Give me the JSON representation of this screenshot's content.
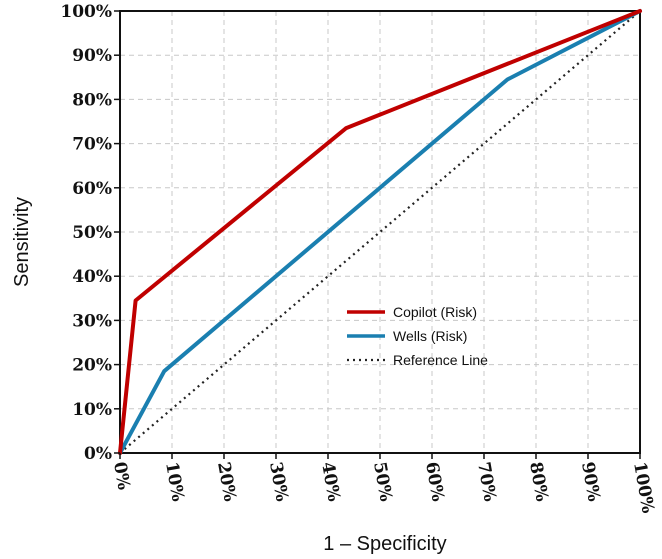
{
  "chart_data": {
    "type": "line",
    "title": "",
    "xlabel": "1 – Specificity",
    "ylabel": "Sensitivity",
    "xlim": [
      0,
      100
    ],
    "ylim": [
      0,
      100
    ],
    "x_ticks": [
      "0%",
      "10%",
      "20%",
      "30%",
      "40%",
      "50%",
      "60%",
      "70%",
      "80%",
      "90%",
      "100%"
    ],
    "y_ticks": [
      "0%",
      "10%",
      "20%",
      "30%",
      "40%",
      "50%",
      "60%",
      "70%",
      "80%",
      "90%",
      "100%"
    ],
    "grid": true,
    "legend_position": "center-right",
    "series": [
      {
        "name": "Copilot (Risk)",
        "color": "#C00000",
        "style": "solid",
        "points": [
          [
            0,
            0
          ],
          [
            3,
            34.5
          ],
          [
            43.5,
            73.5
          ],
          [
            100,
            100
          ]
        ]
      },
      {
        "name": "Wells (Risk)",
        "color": "#1A7FB0",
        "style": "solid",
        "points": [
          [
            0,
            0
          ],
          [
            8.5,
            18.5
          ],
          [
            74.5,
            84.5
          ],
          [
            100,
            100
          ]
        ]
      },
      {
        "name": "Reference Line",
        "color": "#222222",
        "style": "dotted",
        "points": [
          [
            0,
            0
          ],
          [
            100,
            100
          ]
        ]
      }
    ]
  }
}
